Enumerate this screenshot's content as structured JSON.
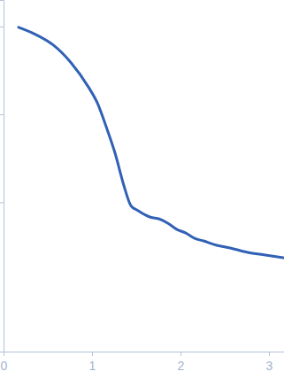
{
  "chart_data": {
    "type": "line",
    "log": "y",
    "tick_labels": "x",
    "x": [
      0.17,
      0.36,
      0.56,
      0.76,
      0.96,
      1.06,
      1.16,
      1.26,
      1.36,
      1.44,
      1.51,
      1.66,
      1.76,
      1.86,
      1.96,
      2.06,
      2.16,
      2.26,
      2.41,
      2.56,
      2.76,
      2.96,
      3.16
    ],
    "series": [
      {
        "color": "#3161b5",
        "values": [
          0.0977,
          0.0813,
          0.0617,
          0.0389,
          0.0204,
          0.0135,
          0.00724,
          0.00363,
          0.00155,
          0.000912,
          0.000813,
          0.000676,
          0.000646,
          0.000575,
          0.00049,
          0.000447,
          0.000389,
          0.000363,
          0.000324,
          0.000302,
          0.000269,
          0.000251,
          0.000234
        ]
      }
    ],
    "xlim": [
      0,
      3.17
    ],
    "xticks": [
      0,
      1,
      2,
      3
    ],
    "ylim": [
      2e-05,
      0.2
    ],
    "yticks": [
      0.001,
      0.01,
      0.1
    ]
  }
}
